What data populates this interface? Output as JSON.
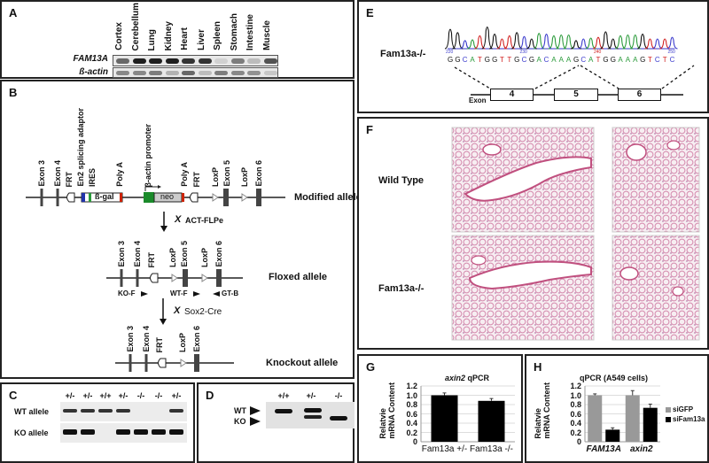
{
  "panel_a": {
    "label": "A",
    "tissues": [
      "Cortex",
      "Cerebellum",
      "Lung",
      "Kidney",
      "Heart",
      "Liver",
      "Spleen",
      "Stomach",
      "Intestine",
      "Muscle"
    ],
    "rows": [
      {
        "name": "FAM13A",
        "intensity": [
          0.6,
          0.95,
          0.95,
          0.95,
          0.85,
          0.85,
          0.1,
          0.5,
          0.2,
          0.7
        ]
      },
      {
        "name": "ß-actin",
        "intensity": [
          0.45,
          0.45,
          0.5,
          0.25,
          0.6,
          0.2,
          0.5,
          0.45,
          0.4,
          0.15
        ]
      }
    ]
  },
  "panel_b": {
    "label": "B",
    "modified": {
      "labels": [
        "Exon 3",
        "Exon 4",
        "FRT",
        "En2 splicing adaptor",
        "IRES",
        "Poly A",
        "β-actin promoter",
        "Poly A",
        "FRT",
        "LoxP",
        "Exon 5",
        "LoxP",
        "Exon 6"
      ],
      "bgal": "ß-gal",
      "neo": "neo",
      "name": "Modified allele"
    },
    "step1": {
      "x": "X",
      "label": "ACT-FLPe"
    },
    "floxed": {
      "labels": [
        "Exon 3",
        "Exon 4",
        "FRT",
        "LoxP",
        "Exon 5",
        "LoxP",
        "Exon 6"
      ],
      "name": "Floxed allele",
      "primers": [
        "KO-F",
        "WT-F",
        "GT-B"
      ]
    },
    "step2": {
      "x": "X",
      "label": "Sox2-Cre"
    },
    "knockout": {
      "labels": [
        "Exon 3",
        "Exon 4",
        "FRT",
        "LoxP",
        "Exon 6"
      ],
      "name": "Knockout allele"
    }
  },
  "panel_c": {
    "label": "C",
    "genotypes": [
      "+/-",
      "+/-",
      "+/+",
      "+/-",
      "-/-",
      "-/-",
      "+/-"
    ],
    "rows": [
      {
        "name": "WT allele",
        "bands": [
          1,
          1,
          1,
          1,
          0,
          0,
          1
        ]
      },
      {
        "name": "KO allele",
        "bands": [
          1,
          1,
          0,
          1,
          1,
          1,
          1
        ]
      }
    ]
  },
  "panel_d": {
    "label": "D",
    "genotypes": [
      "+/+",
      "+/-",
      "-/-"
    ],
    "markers": [
      "WT",
      "KO"
    ]
  },
  "panel_e": {
    "label": "E",
    "genotype": "Fam13a-/-",
    "sequence": "GGCATGGTTGCGACAAAGCATGGAAAGTCTC",
    "positions": [
      "220",
      "230",
      "240",
      "250"
    ],
    "exons": [
      "4",
      "5",
      "6"
    ],
    "exon_label": "Exon",
    "base_colors": {
      "A": "#2a9a3a",
      "C": "#3a3acc",
      "G": "#111111",
      "T": "#d02020"
    }
  },
  "panel_f": {
    "label": "F",
    "rows": [
      "Wild Type",
      "Fam13a-/-"
    ]
  },
  "panel_g": {
    "label": "G",
    "title_italic": "axin2",
    "title_rest": " qPCR",
    "ylabel": [
      "Relatvie",
      "mRNA Content"
    ],
    "chart_data": {
      "type": "bar",
      "categories": [
        "Fam13a +/-",
        "Fam13a -/-"
      ],
      "values": [
        1.0,
        0.88
      ],
      "errors": [
        0.05,
        0.05
      ],
      "ylim": [
        0,
        1.2
      ],
      "yticks": [
        "0",
        "0.2",
        "0.4",
        "0.6",
        "0.8",
        "1.0",
        "1.2"
      ],
      "color": "#000000",
      "grid": true
    }
  },
  "panel_h": {
    "label": "H",
    "title": "qPCR (A549 cells)",
    "ylabel": [
      "Relatvie",
      "mRNA Content"
    ],
    "chart_data": {
      "type": "bar",
      "categories": [
        "FAM13A",
        "axin2"
      ],
      "series": [
        {
          "name": "siGFP",
          "values": [
            1.0,
            1.0
          ],
          "errors": [
            0.03,
            0.1
          ],
          "color": "#999999"
        },
        {
          "name": "siFam13a",
          "values": [
            0.26,
            0.73
          ],
          "errors": [
            0.04,
            0.08
          ],
          "color": "#000000"
        }
      ],
      "ylim": [
        0,
        1.2
      ],
      "yticks": [
        "0",
        "0.2",
        "0.4",
        "0.6",
        "0.8",
        "1.0",
        "1.2"
      ],
      "legend": "right",
      "grid": true
    }
  }
}
